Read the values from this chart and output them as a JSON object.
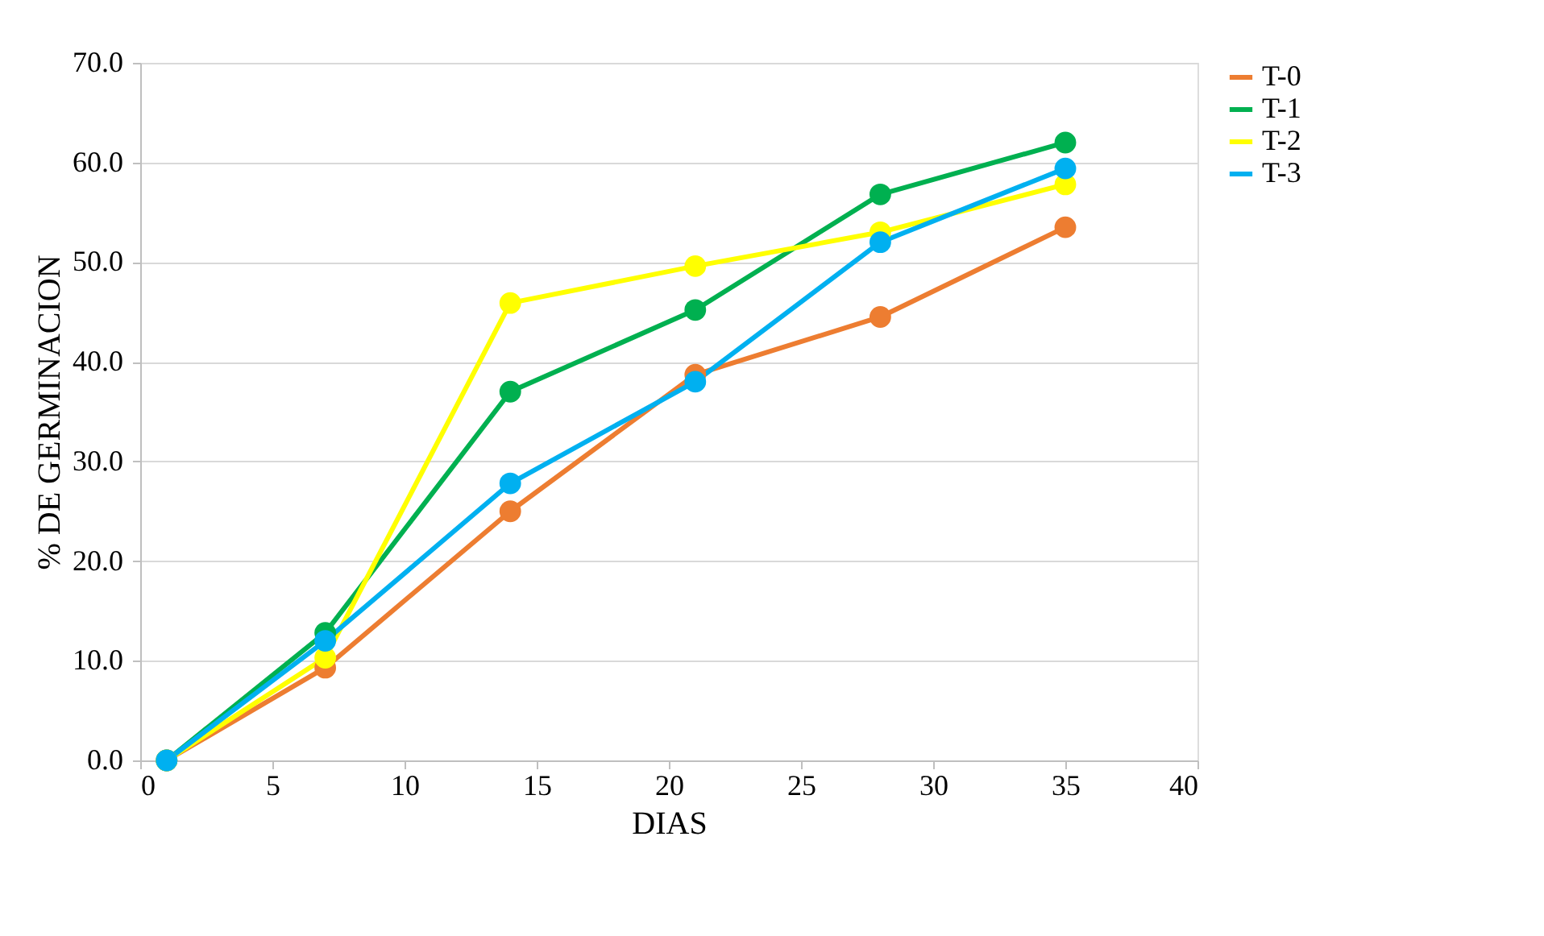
{
  "chart_data": {
    "type": "line",
    "xlabel": "DIAS",
    "ylabel": "% DE GERMINACION",
    "x": [
      1,
      7,
      14,
      21,
      28,
      35
    ],
    "series": [
      {
        "name": "T-0",
        "color": "#ed7d31",
        "values": [
          0,
          9.3,
          25.0,
          38.7,
          44.5,
          53.5
        ]
      },
      {
        "name": "T-1",
        "color": "#00b050",
        "values": [
          0,
          12.8,
          37.0,
          45.2,
          56.8,
          62.0
        ]
      },
      {
        "name": "T-2",
        "color": "#ffff00",
        "values": [
          0,
          10.3,
          45.9,
          49.6,
          53.0,
          57.8
        ]
      },
      {
        "name": "T-3",
        "color": "#00b0f0",
        "values": [
          0,
          12.0,
          27.8,
          38.0,
          52.0,
          59.4
        ]
      }
    ],
    "xlim": [
      0,
      40
    ],
    "xticks": [
      0,
      5,
      10,
      15,
      20,
      25,
      30,
      35,
      40
    ],
    "ylim": [
      0,
      70
    ],
    "yticks": [
      {
        "value": 0,
        "label": "0.0"
      },
      {
        "value": 10,
        "label": "10.0"
      },
      {
        "value": 20,
        "label": "20.0"
      },
      {
        "value": 30,
        "label": "30.0"
      },
      {
        "value": 40,
        "label": "40.0"
      },
      {
        "value": 50,
        "label": "50.0"
      },
      {
        "value": 60,
        "label": "60.0"
      },
      {
        "value": 70,
        "label": "70.0"
      }
    ],
    "grid": "y",
    "legend": "right",
    "marker": "circle",
    "line_style": "solid"
  }
}
